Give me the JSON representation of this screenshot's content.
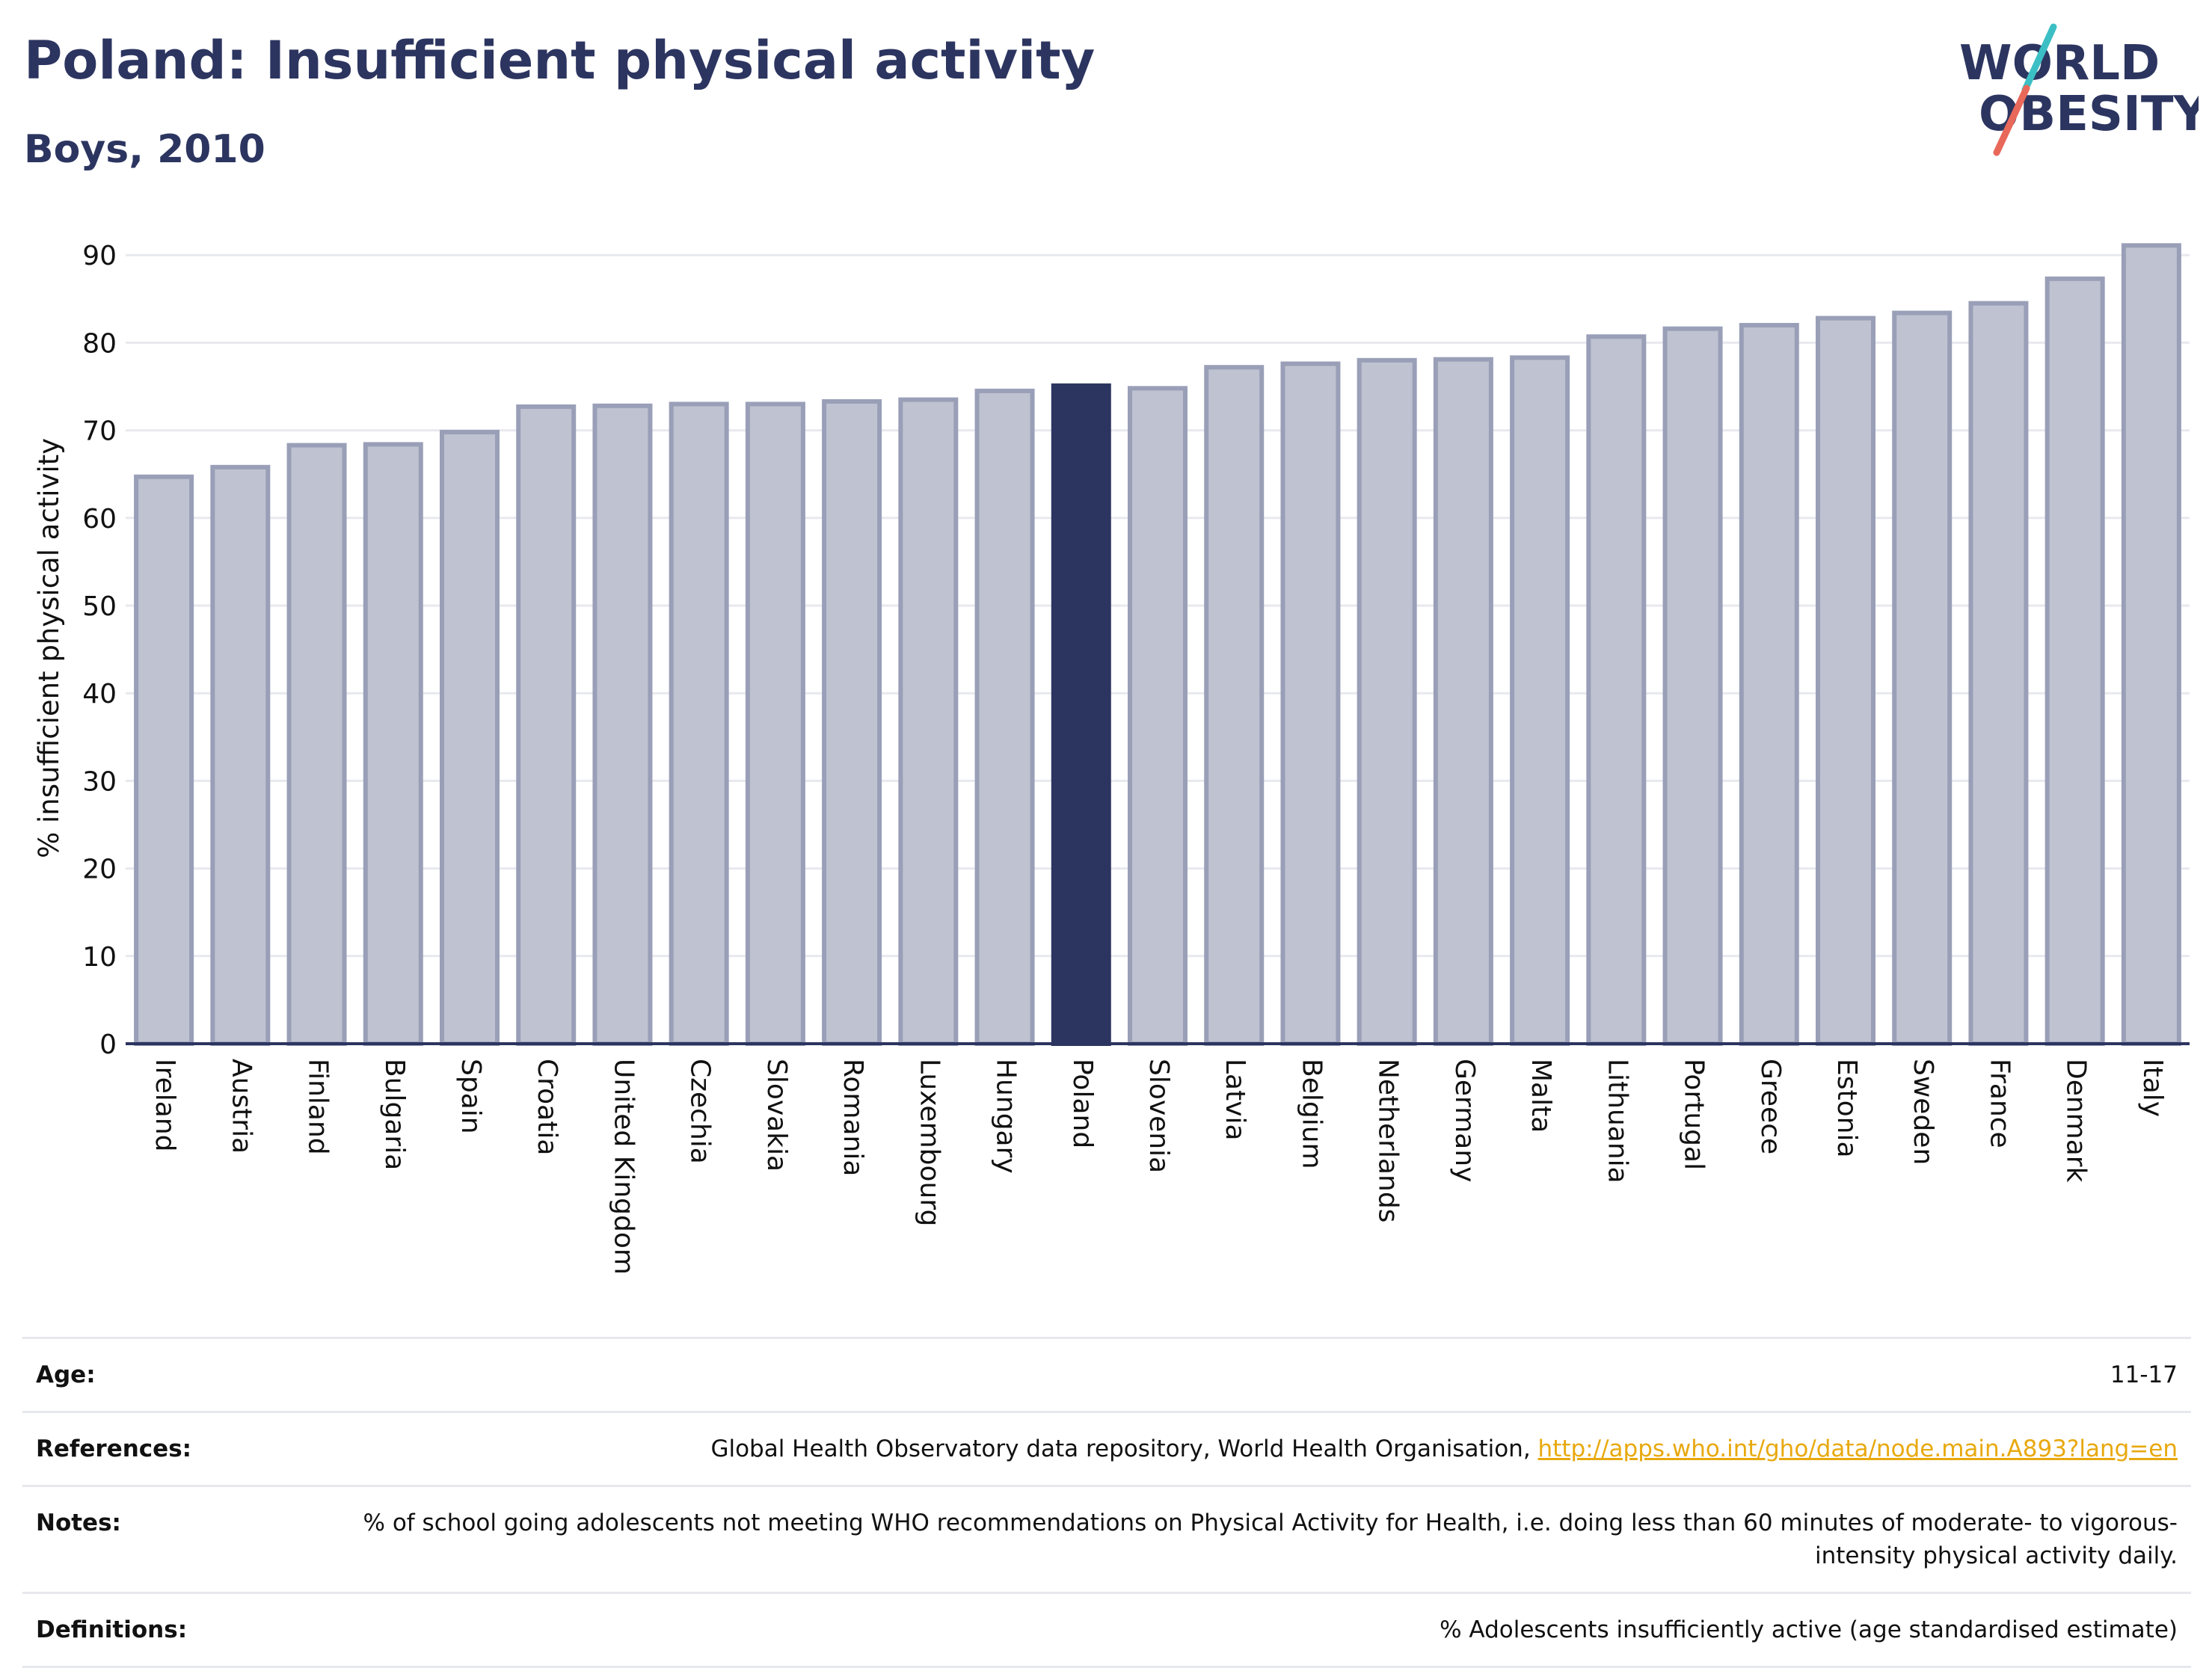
{
  "header": {
    "title": "Poland: Insufficient physical activity",
    "subtitle": "Boys, 2010"
  },
  "logo": {
    "line1": "WORLD",
    "line2": "OBESITY",
    "colors": {
      "text": "#2c3560",
      "slash_teal": "#3bbfc4",
      "slash_red": "#e8685a"
    }
  },
  "chart_data": {
    "type": "bar",
    "title": "",
    "xlabel": "",
    "ylabel": "% insufficient physical activity",
    "ylim": [
      0,
      92
    ],
    "yticks": [
      0,
      10,
      20,
      30,
      40,
      50,
      60,
      70,
      80,
      90
    ],
    "grid": true,
    "highlight": "Poland",
    "colors": {
      "bar": "#bfc2d0",
      "bar_edge": "#9a9fb8",
      "highlight": "#2c3560",
      "axis": "#2c3560",
      "grid": "#e8e9ef"
    },
    "categories": [
      "Ireland",
      "Austria",
      "Finland",
      "Bulgaria",
      "Spain",
      "Croatia",
      "United Kingdom",
      "Czechia",
      "Slovakia",
      "Romania",
      "Luxembourg",
      "Hungary",
      "Poland",
      "Slovenia",
      "Latvia",
      "Belgium",
      "Netherlands",
      "Germany",
      "Malta",
      "Lithuania",
      "Portugal",
      "Greece",
      "Estonia",
      "Sweden",
      "France",
      "Denmark",
      "Italy"
    ],
    "values": [
      64.7,
      65.8,
      68.3,
      68.4,
      69.8,
      72.7,
      72.8,
      73.0,
      73.0,
      73.3,
      73.5,
      74.5,
      75.1,
      74.8,
      77.2,
      77.6,
      78.0,
      78.1,
      78.3,
      80.7,
      81.6,
      82.0,
      82.8,
      83.4,
      84.5,
      87.3,
      91.1
    ]
  },
  "info": [
    {
      "label": "Age:",
      "value": "11-17"
    },
    {
      "label": "References:",
      "value": "Global Health Observatory data repository, World Health Organisation, ",
      "link": "http://apps.who.int/gho/data/node.main.A893?lang=en"
    },
    {
      "label": "Notes:",
      "value": "% of school going adolescents not meeting WHO recommendations on Physical Activity for Health, i.e. doing less than 60 minutes of moderate- to vigorous-intensity physical activity daily."
    },
    {
      "label": "Definitions:",
      "value": "% Adolescents insufficiently active (age standardised estimate)"
    }
  ]
}
